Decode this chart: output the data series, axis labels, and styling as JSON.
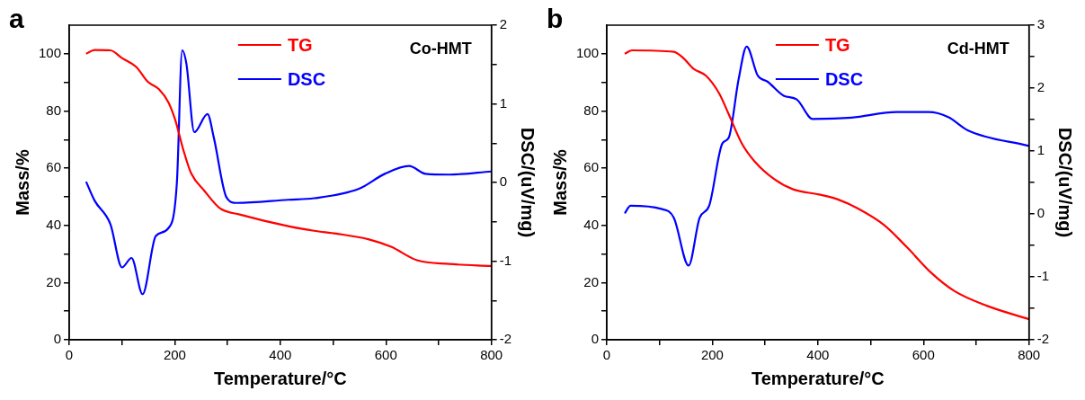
{
  "chart_data": [
    {
      "type": "line",
      "title": "a",
      "xlabel": "Temperature/°C",
      "ylabel": "Mass/%",
      "y2label": "DSC/(uV/mg)",
      "annotations": [
        "Co-HMT"
      ],
      "legend": "top",
      "line_style": "solid",
      "marker": "none",
      "grid": false,
      "xlim": [
        0,
        800
      ],
      "xticks": [
        0,
        {
          "value": 100,
          "label": null
        },
        200,
        {
          "value": 300,
          "label": null
        },
        400,
        {
          "value": 500,
          "label": null
        },
        600,
        {
          "value": 700,
          "label": null
        },
        800
      ],
      "ylim": [
        0,
        110
      ],
      "yticks": [
        0,
        {
          "value": 10,
          "label": null
        },
        20,
        {
          "value": 30,
          "label": null
        },
        40,
        {
          "value": 50,
          "label": null
        },
        60,
        {
          "value": 70,
          "label": null
        },
        80,
        {
          "value": 90,
          "label": null
        },
        100
      ],
      "y2lim": [
        -2,
        2
      ],
      "y2ticks": [
        -2,
        {
          "value": -1.5,
          "label": null
        },
        -1,
        {
          "value": -0.5,
          "label": null
        },
        0,
        {
          "value": 0.5,
          "label": null
        },
        1,
        {
          "value": 1.5,
          "label": null
        },
        2
      ],
      "series": [
        {
          "name": "TG",
          "color": "#ff0000",
          "x": [
            32,
            48,
            78,
            100,
            127,
            149,
            170,
            188,
            201,
            216,
            231,
            256,
            286,
            323,
            415,
            464,
            506,
            568,
            610,
            659,
            720,
            800
          ],
          "values": [
            100,
            101.3,
            101.2,
            98.5,
            95.4,
            90.2,
            87.6,
            83,
            76.8,
            66.5,
            58.2,
            52.1,
            45.9,
            43.8,
            39.7,
            38.1,
            37.1,
            35.1,
            32.5,
            27.8,
            26.5,
            25.8
          ]
        },
        {
          "name": "DSC",
          "color": "#0000ff",
          "axis": "y2",
          "x": [
            32,
            48,
            78,
            100,
            118,
            139,
            164,
            188,
            204,
            214,
            222,
            237,
            262,
            274,
            298,
            317,
            415,
            464,
            549,
            598,
            644,
            675,
            720,
            800
          ],
          "values": [
            0.01,
            -0.23,
            -0.53,
            -1.08,
            -0.96,
            -1.42,
            -0.68,
            -0.58,
            0,
            1.68,
            1.51,
            0.64,
            0.87,
            0.57,
            -0.19,
            -0.26,
            -0.22,
            -0.2,
            -0.08,
            0.11,
            0.21,
            0.11,
            0.1,
            0.14
          ]
        }
      ]
    },
    {
      "type": "line",
      "title": "b",
      "xlabel": "Temperature/°C",
      "ylabel": "Mass/%",
      "y2label": "DSC/(uV/mg)",
      "annotations": [
        "Cd-HMT"
      ],
      "legend": "top",
      "line_style": "solid",
      "marker": "none",
      "grid": false,
      "xlim": [
        0,
        800
      ],
      "xticks": [
        0,
        {
          "value": 100,
          "label": null
        },
        200,
        {
          "value": 300,
          "label": null
        },
        400,
        {
          "value": 500,
          "label": null
        },
        600,
        {
          "value": 700,
          "label": null
        },
        800
      ],
      "ylim": [
        0,
        110
      ],
      "yticks": [
        0,
        {
          "value": 10,
          "label": null
        },
        20,
        {
          "value": 30,
          "label": null
        },
        40,
        {
          "value": 50,
          "label": null
        },
        60,
        {
          "value": 70,
          "label": null
        },
        80,
        {
          "value": 90,
          "label": null
        },
        100
      ],
      "y2lim": [
        -2,
        3
      ],
      "y2ticks": [
        -2,
        {
          "value": -1.5,
          "label": null
        },
        -1,
        {
          "value": -0.5,
          "label": null
        },
        0,
        {
          "value": 0.5,
          "label": null
        },
        1,
        {
          "value": 1.5,
          "label": null
        },
        2,
        {
          "value": 2.5,
          "label": null
        },
        3
      ],
      "series": [
        {
          "name": "TG",
          "color": "#ff0000",
          "x": [
            34,
            48,
            127,
            145,
            164,
            188,
            213,
            231,
            256,
            280,
            317,
            353,
            402,
            439,
            476,
            525,
            568,
            616,
            659,
            720,
            800
          ],
          "values": [
            100,
            101.2,
            100.7,
            98.5,
            94.8,
            92.3,
            86.1,
            78.9,
            68.6,
            62.4,
            56.2,
            52.6,
            50.8,
            49,
            45.9,
            40.2,
            32.5,
            23.2,
            17,
            11.9,
            7.2
          ]
        },
        {
          "name": "DSC",
          "color": "#0000ff",
          "axis": "y2",
          "x": [
            34,
            45,
            103,
            127,
            155,
            176,
            194,
            219,
            231,
            250,
            265,
            286,
            305,
            335,
            360,
            390,
            464,
            549,
            610,
            647,
            684,
            800
          ],
          "values": [
            0.01,
            0.13,
            0.08,
            -0.06,
            -0.82,
            -0.06,
            0.13,
            1.12,
            1.21,
            2.15,
            2.66,
            2.2,
            2.1,
            1.88,
            1.82,
            1.51,
            1.53,
            1.62,
            1.62,
            1.54,
            1.33,
            1.08
          ]
        }
      ]
    }
  ]
}
